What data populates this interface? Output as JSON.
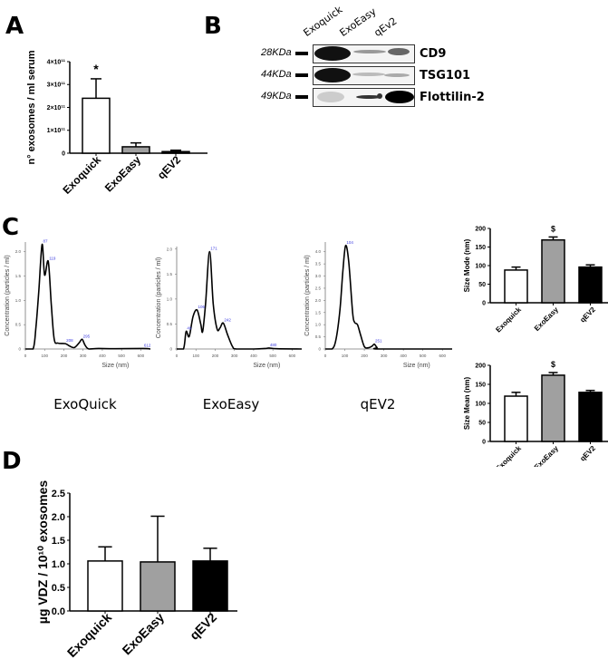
{
  "panels": {
    "A": {
      "letter": "A"
    },
    "B": {
      "letter": "B"
    },
    "C": {
      "letter": "C"
    },
    "D": {
      "letter": "D"
    }
  },
  "western_blot": {
    "lanes": [
      "Exoquick",
      "ExoEasy",
      "qEv2"
    ],
    "rows": [
      {
        "kda": "28KDa",
        "protein": "CD9"
      },
      {
        "kda": "44KDa",
        "protein": "TSG101"
      },
      {
        "kda": "49KDa",
        "protein": "Flottilin-2"
      }
    ]
  },
  "distribution_titles": [
    "ExoQuick",
    "ExoEasy",
    "qEV2"
  ],
  "chart_data": [
    {
      "id": "A",
      "type": "bar",
      "title": "",
      "categories": [
        "Exoquick",
        "ExoEasy",
        "qEV2"
      ],
      "values": [
        240000000000.0,
        28000000000.0,
        7000000000.0
      ],
      "errors": [
        85000000000.0,
        17000000000.0,
        6000000000.0
      ],
      "colors": [
        "#ffffff",
        "#a0a0a0",
        "#000000"
      ],
      "ylabel": "n° exosomes / ml serum",
      "yticks": [
        "0",
        "1×10¹¹",
        "2×10¹¹",
        "3×10¹¹",
        "4×10¹¹"
      ],
      "ylim": [
        0,
        400000000000.0
      ],
      "annotations": [
        {
          "category": "Exoquick",
          "text": "*"
        }
      ]
    },
    {
      "id": "C-ExoQuick",
      "type": "line",
      "title": "ExoQuick",
      "xlabel": "Size (nm)",
      "ylabel": "Concentration (particles / ml)",
      "xticks": [
        "0",
        "100",
        "200",
        "300",
        "400",
        "500",
        "600"
      ],
      "yticks": [
        "0",
        "0.5",
        "1.0",
        "1.5",
        "2.0"
      ],
      "xlim": [
        0,
        650
      ],
      "ylim": [
        0,
        2.2
      ],
      "x": [
        0,
        40,
        55,
        70,
        87,
        100,
        119,
        135,
        150,
        170,
        208,
        230,
        255,
        280,
        295,
        310,
        330,
        380,
        460,
        612,
        650
      ],
      "y": [
        0,
        0,
        0.45,
        1.2,
        2.15,
        1.52,
        1.8,
        0.9,
        0.2,
        0.12,
        0.11,
        0.06,
        0.03,
        0.13,
        0.2,
        0.08,
        0,
        0.01,
        0.005,
        0.01,
        0
      ],
      "peak_labels": [
        {
          "x": 87,
          "label": "87"
        },
        {
          "x": 119,
          "label": "119"
        },
        {
          "x": 208,
          "label": "208"
        },
        {
          "x": 295,
          "label": "295"
        },
        {
          "x": 612,
          "label": "612"
        }
      ]
    },
    {
      "id": "C-ExoEasy",
      "type": "line",
      "title": "ExoEasy",
      "xlabel": "Size (nm)",
      "ylabel": "Concentration (particles / ml)",
      "xticks": [
        "0",
        "100",
        "200",
        "300",
        "400",
        "500",
        "600"
      ],
      "yticks": [
        "0",
        "0.5",
        "1.0",
        "1.5",
        "2.0"
      ],
      "xlim": [
        0,
        650
      ],
      "ylim": [
        0,
        2.05
      ],
      "x": [
        0,
        35,
        49,
        65,
        85,
        106,
        125,
        135,
        150,
        171,
        190,
        210,
        225,
        242,
        265,
        290,
        310,
        400,
        460,
        480,
        520,
        650
      ],
      "y": [
        0,
        0,
        0.35,
        0.25,
        0.65,
        0.78,
        0.5,
        0.35,
        0.9,
        1.95,
        0.9,
        0.4,
        0.42,
        0.52,
        0.28,
        0.05,
        0,
        0,
        0.01,
        0.02,
        0.005,
        0
      ],
      "peak_labels": [
        {
          "x": 49,
          "label": "49"
        },
        {
          "x": 106,
          "label": "106"
        },
        {
          "x": 171,
          "label": "171"
        },
        {
          "x": 242,
          "label": "242"
        },
        {
          "x": 480,
          "label": "480"
        }
      ]
    },
    {
      "id": "C-qEV2",
      "type": "line",
      "title": "qEV2",
      "xlabel": "Size (nm)",
      "ylabel": "Concentration (particles / ml)",
      "xticks": [
        "0",
        "100",
        "200",
        "300",
        "400",
        "500",
        "600"
      ],
      "yticks": [
        "0",
        "0.5",
        "1.0",
        "1.5",
        "2.0",
        "2.5",
        "3.0",
        "3.5",
        "4.0"
      ],
      "xlim": [
        0,
        650
      ],
      "ylim": [
        0,
        4.4
      ],
      "x": [
        0,
        35,
        55,
        75,
        90,
        104,
        120,
        140,
        150,
        165,
        180,
        200,
        220,
        240,
        251,
        265,
        280,
        650
      ],
      "y": [
        0,
        0,
        0.4,
        1.6,
        3.2,
        4.25,
        3.6,
        1.5,
        1.1,
        1.0,
        0.6,
        0.1,
        0.05,
        0.12,
        0.2,
        0.06,
        0,
        0
      ],
      "peak_labels": [
        {
          "x": 104,
          "label": "104"
        },
        {
          "x": 251,
          "label": "251"
        }
      ]
    },
    {
      "id": "C-SizeMode",
      "type": "bar",
      "categories": [
        "Exoquick",
        "ExoEasy",
        "qEV2"
      ],
      "values": [
        88,
        169,
        96
      ],
      "errors": [
        8,
        8,
        6
      ],
      "colors": [
        "#ffffff",
        "#a0a0a0",
        "#000000"
      ],
      "ylabel": "Size Mode (nm)",
      "yticks": [
        "0",
        "50",
        "100",
        "150",
        "200"
      ],
      "ylim": [
        0,
        200
      ],
      "annotations": [
        {
          "category": "ExoEasy",
          "text": "$"
        }
      ]
    },
    {
      "id": "C-SizeMean",
      "type": "bar",
      "categories": [
        "Exoquick",
        "ExoEasy",
        "qEV2"
      ],
      "values": [
        119,
        174,
        129
      ],
      "errors": [
        10,
        7,
        5
      ],
      "colors": [
        "#ffffff",
        "#a0a0a0",
        "#000000"
      ],
      "ylabel": "Size Mean (nm)",
      "yticks": [
        "0",
        "50",
        "100",
        "150",
        "200"
      ],
      "ylim": [
        0,
        200
      ],
      "annotations": [
        {
          "category": "ExoEasy",
          "text": "$"
        }
      ]
    },
    {
      "id": "D",
      "type": "bar",
      "categories": [
        "Exoquick",
        "ExoEasy",
        "qEV2"
      ],
      "values": [
        1.06,
        1.04,
        1.06
      ],
      "errors": [
        0.3,
        0.97,
        0.27
      ],
      "colors": [
        "#ffffff",
        "#a0a0a0",
        "#000000"
      ],
      "ylabel": "µg VDZ / 10¹⁰ exosomes",
      "yticks": [
        "0.0",
        "0.5",
        "1.0",
        "1.5",
        "2.0",
        "2.5"
      ],
      "ylim": [
        0,
        2.5
      ]
    }
  ]
}
